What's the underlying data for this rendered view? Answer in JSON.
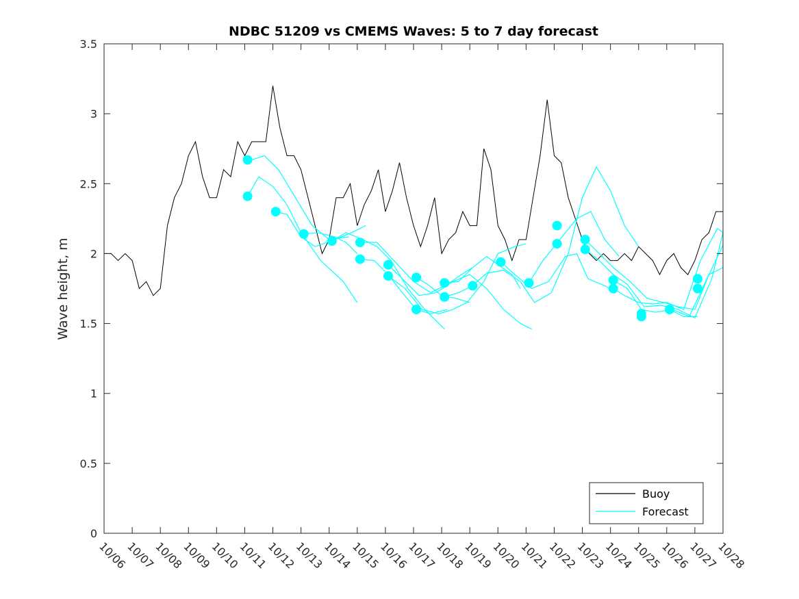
{
  "chart_data": {
    "type": "line",
    "title": "NDBC 51209 vs CMEMS Waves: 5 to 7 day forecast",
    "xlabel": "",
    "ylabel": "Wave height, m",
    "xlim": [
      0,
      22
    ],
    "ylim": [
      0,
      3.5
    ],
    "x_tick_labels": [
      "10/06",
      "10/07",
      "10/08",
      "10/09",
      "10/10",
      "10/11",
      "10/12",
      "10/13",
      "10/14",
      "10/15",
      "10/16",
      "10/17",
      "10/18",
      "10/19",
      "10/20",
      "10/21",
      "10/22",
      "10/23",
      "10/24",
      "10/25",
      "10/26",
      "10/27",
      "10/28"
    ],
    "y_ticks": [
      0,
      0.5,
      1,
      1.5,
      2,
      2.5,
      3,
      3.5
    ],
    "y_tick_labels": [
      "0",
      "0.5",
      "1",
      "1.5",
      "2",
      "2.5",
      "3",
      "3.5"
    ],
    "legend": {
      "position": "bottom-right",
      "entries": [
        "Buoy",
        "Forecast"
      ]
    },
    "colors": {
      "buoy": "#000000",
      "forecast": "#00FFFF",
      "axes": "#262626"
    },
    "series": [
      {
        "name": "Buoy",
        "x": [
          0,
          0.25,
          0.5,
          0.75,
          1,
          1.25,
          1.5,
          1.75,
          2,
          2.25,
          2.5,
          2.75,
          3,
          3.25,
          3.5,
          3.75,
          4,
          4.25,
          4.5,
          4.75,
          5,
          5.25,
          5.5,
          5.75,
          6,
          6.25,
          6.5,
          6.75,
          7,
          7.25,
          7.5,
          7.75,
          8,
          8.25,
          8.5,
          8.75,
          9,
          9.25,
          9.5,
          9.75,
          10,
          10.25,
          10.5,
          10.75,
          11,
          11.25,
          11.5,
          11.75,
          12,
          12.25,
          12.5,
          12.75,
          13,
          13.25,
          13.5,
          13.75,
          14,
          14.25,
          14.5,
          14.75,
          15,
          15.25,
          15.5,
          15.75,
          16,
          16.25,
          16.5,
          16.75,
          17,
          17.25,
          17.5,
          17.75,
          18,
          18.25,
          18.5,
          18.75,
          19,
          19.25,
          19.5,
          19.75,
          20,
          20.25,
          20.5,
          20.75,
          21,
          21.25,
          21.5,
          21.75,
          22
        ],
        "values": [
          2.0,
          2.0,
          1.95,
          2.0,
          1.95,
          1.75,
          1.8,
          1.7,
          1.75,
          2.2,
          2.4,
          2.5,
          2.7,
          2.8,
          2.55,
          2.4,
          2.4,
          2.6,
          2.55,
          2.8,
          2.7,
          2.8,
          2.8,
          2.8,
          3.2,
          2.9,
          2.7,
          2.7,
          2.6,
          2.4,
          2.2,
          2.0,
          2.1,
          2.4,
          2.4,
          2.5,
          2.2,
          2.35,
          2.45,
          2.6,
          2.3,
          2.45,
          2.65,
          2.4,
          2.2,
          2.05,
          2.2,
          2.4,
          2.0,
          2.1,
          2.15,
          2.3,
          2.2,
          2.2,
          2.75,
          2.6,
          2.2,
          2.1,
          1.95,
          2.1,
          2.1,
          2.4,
          2.7,
          3.1,
          2.7,
          2.65,
          2.4,
          2.25,
          2.1,
          2.0,
          1.95,
          2.0,
          1.95,
          1.95,
          2.0,
          1.95,
          2.05,
          2.0,
          1.95,
          1.85,
          1.95,
          2.0,
          1.9,
          1.85,
          1.95,
          2.1,
          2.15,
          2.3,
          2.3
        ]
      },
      {
        "name": "Forecast",
        "segments": [
          {
            "x": [
              5.1,
              5.5,
              6.0,
              6.5,
              7.0,
              7.7,
              8.5,
              9.0
            ],
            "values": [
              2.41,
              2.55,
              2.48,
              2.35,
              2.15,
              1.95,
              1.8,
              1.65
            ]
          },
          {
            "x": [
              5.1,
              5.7,
              6.2,
              6.8,
              7.4,
              8.0,
              8.7
            ],
            "values": [
              2.66,
              2.7,
              2.6,
              2.4,
              2.2,
              2.1,
              2.12
            ]
          },
          {
            "x": [
              6.1,
              6.5,
              7.0,
              7.5,
              8.2,
              8.8,
              9.3
            ],
            "values": [
              2.3,
              2.28,
              2.12,
              2.05,
              2.1,
              2.15,
              2.2
            ]
          },
          {
            "x": [
              7.1,
              7.6,
              8.2,
              8.6,
              9.0
            ],
            "values": [
              2.14,
              2.15,
              2.12,
              2.08,
              2.0
            ]
          },
          {
            "x": [
              8.1,
              8.6,
              9.2,
              9.7,
              10.2,
              10.8,
              11.4,
              12.1
            ],
            "values": [
              2.09,
              2.15,
              2.1,
              2.05,
              1.95,
              1.75,
              1.6,
              1.46
            ]
          },
          {
            "x": [
              9.1,
              9.7,
              10.3,
              11.0,
              11.6,
              12.2,
              12.7,
              13.1
            ],
            "values": [
              2.08,
              2.08,
              1.95,
              1.8,
              1.72,
              1.78,
              1.85,
              1.9
            ]
          },
          {
            "x": [
              9.1,
              9.6,
              10.1,
              10.6,
              11.1,
              11.6,
              12.2
            ],
            "values": [
              1.96,
              1.95,
              1.85,
              1.72,
              1.6,
              1.57,
              1.6
            ]
          },
          {
            "x": [
              10.1,
              10.6,
              11.2,
              11.8,
              12.4,
              13.0,
              13.6,
              14.2,
              14.8,
              15.2
            ],
            "values": [
              1.92,
              1.82,
              1.7,
              1.72,
              1.8,
              1.85,
              1.75,
              1.6,
              1.5,
              1.46
            ]
          },
          {
            "x": [
              10.1,
              10.7,
              11.3,
              11.9,
              12.4,
              12.9,
              13.5,
              14.0,
              14.6,
              15.0
            ],
            "values": [
              1.84,
              1.75,
              1.6,
              1.57,
              1.6,
              1.65,
              1.8,
              2.0,
              2.05,
              2.07
            ]
          },
          {
            "x": [
              11.1,
              11.5,
              12.0,
              12.5,
              13.0
            ],
            "values": [
              1.83,
              1.78,
              1.7,
              1.68,
              1.65
            ]
          },
          {
            "x": [
              12.1,
              12.6,
              13.1,
              13.6,
              14.0,
              14.5,
              14.8
            ],
            "values": [
              1.79,
              1.8,
              1.9,
              1.98,
              1.92,
              1.85,
              1.75
            ]
          },
          {
            "x": [
              12.1,
              12.6,
              13.1,
              13.6,
              14.2,
              14.8,
              15.3,
              15.9,
              16.5,
              17.0,
              17.5,
              18.0,
              18.5,
              19.0
            ],
            "values": [
              1.69,
              1.72,
              1.77,
              1.86,
              1.88,
              1.8,
              1.65,
              1.72,
              2.0,
              2.4,
              2.62,
              2.45,
              2.2,
              2.05
            ]
          },
          {
            "x": [
              15.1,
              15.6,
              16.2,
              16.8,
              17.3,
              17.8,
              18.3
            ],
            "values": [
              1.79,
              1.95,
              2.1,
              2.25,
              2.3,
              2.1,
              1.98
            ]
          },
          {
            "x": [
              14.1,
              14.6,
              15.2,
              15.8,
              16.4,
              16.8,
              17.2,
              17.8,
              18.2
            ],
            "values": [
              1.94,
              1.85,
              1.75,
              1.8,
              1.98,
              2.0,
              1.82,
              1.77,
              1.72
            ]
          },
          {
            "x": [
              17.1,
              17.6,
              18.1,
              18.7,
              19.3,
              19.9,
              20.4,
              21.0,
              21.5,
              22.0
            ],
            "values": [
              2.1,
              2.0,
              1.9,
              1.8,
              1.68,
              1.65,
              1.62,
              1.6,
              1.85,
              2.06
            ]
          },
          {
            "x": [
              17.1,
              17.6,
              18.1,
              18.6,
              19.2,
              19.8,
              20.4,
              21.0,
              21.6,
              22.0
            ],
            "values": [
              2.03,
              1.95,
              1.85,
              1.78,
              1.62,
              1.63,
              1.6,
              1.54,
              1.82,
              2.15
            ]
          },
          {
            "x": [
              18.1,
              18.6,
              19.1,
              19.6,
              20.2,
              20.8,
              21.5,
              22.0
            ],
            "values": [
              1.81,
              1.75,
              1.6,
              1.58,
              1.6,
              1.55,
              1.85,
              1.9
            ]
          },
          {
            "x": [
              18.1,
              18.5,
              19.0,
              19.5,
              20.0,
              20.6,
              21.2,
              21.8,
              22.0
            ],
            "values": [
              1.75,
              1.7,
              1.65,
              1.64,
              1.65,
              1.6,
              1.95,
              2.18,
              2.15
            ]
          },
          {
            "x": [
              20.1,
              20.6,
              21.1
            ],
            "values": [
              1.6,
              1.55,
              1.55
            ]
          }
        ],
        "markers": [
          {
            "x": 5.1,
            "y": 2.67
          },
          {
            "x": 5.1,
            "y": 2.41
          },
          {
            "x": 6.1,
            "y": 2.3
          },
          {
            "x": 7.1,
            "y": 2.14
          },
          {
            "x": 8.1,
            "y": 2.09
          },
          {
            "x": 9.1,
            "y": 2.08
          },
          {
            "x": 9.1,
            "y": 1.96
          },
          {
            "x": 10.1,
            "y": 1.92
          },
          {
            "x": 10.1,
            "y": 1.84
          },
          {
            "x": 11.1,
            "y": 1.83
          },
          {
            "x": 11.1,
            "y": 1.6
          },
          {
            "x": 12.1,
            "y": 1.79
          },
          {
            "x": 12.1,
            "y": 1.69
          },
          {
            "x": 13.1,
            "y": 1.77
          },
          {
            "x": 14.1,
            "y": 1.94
          },
          {
            "x": 15.1,
            "y": 1.79
          },
          {
            "x": 16.1,
            "y": 2.2
          },
          {
            "x": 16.1,
            "y": 2.07
          },
          {
            "x": 17.1,
            "y": 2.1
          },
          {
            "x": 17.1,
            "y": 2.03
          },
          {
            "x": 18.1,
            "y": 1.81
          },
          {
            "x": 18.1,
            "y": 1.75
          },
          {
            "x": 19.1,
            "y": 1.57
          },
          {
            "x": 19.1,
            "y": 1.55
          },
          {
            "x": 20.1,
            "y": 1.6
          },
          {
            "x": 21.1,
            "y": 1.82
          },
          {
            "x": 21.1,
            "y": 1.75
          }
        ]
      }
    ]
  }
}
